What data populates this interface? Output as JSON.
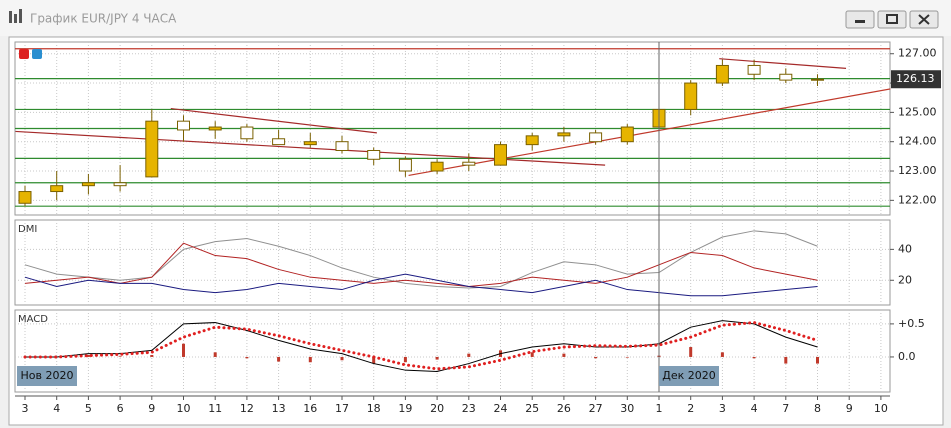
{
  "window": {
    "title": "График EUR/JPY  4 ЧАСА"
  },
  "x_axis": {
    "categories": [
      "3",
      "4",
      "5",
      "6",
      "9",
      "10",
      "11",
      "12",
      "13",
      "16",
      "17",
      "18",
      "19",
      "20",
      "23",
      "24",
      "25",
      "26",
      "27",
      "30",
      "1",
      "2",
      "3",
      "4",
      "7",
      "8",
      "9",
      "10"
    ],
    "period_labels": [
      {
        "index": 0,
        "label": "Нов 2020"
      },
      {
        "index": 20,
        "label": "Дек 2020"
      }
    ]
  },
  "chart_data": [
    {
      "type": "candlestick",
      "color": "#e6b400",
      "open": [
        121.9,
        122.3,
        122.5,
        122.6,
        122.8,
        124.7,
        124.4,
        124.5,
        124.1,
        123.9,
        124.0,
        123.7,
        123.4,
        123.0,
        123.3,
        123.2,
        123.9,
        124.2,
        124.3,
        124.0,
        124.5,
        125.1,
        126.0,
        126.6,
        126.3,
        126.1,
        null,
        null
      ],
      "high": [
        122.5,
        123.0,
        122.9,
        123.2,
        125.1,
        124.9,
        124.7,
        124.6,
        124.4,
        124.3,
        124.2,
        123.8,
        123.5,
        123.4,
        123.6,
        124.0,
        124.3,
        124.5,
        124.4,
        124.6,
        125.2,
        126.1,
        126.8,
        126.8,
        126.5,
        126.3,
        null,
        null
      ],
      "low": [
        121.8,
        122.0,
        122.2,
        122.3,
        122.8,
        124.0,
        124.1,
        124.0,
        123.9,
        123.8,
        123.6,
        123.2,
        122.8,
        122.9,
        123.0,
        123.2,
        123.7,
        124.0,
        123.9,
        123.9,
        124.3,
        124.9,
        125.9,
        126.1,
        126.0,
        125.9,
        null,
        null
      ],
      "close": [
        122.3,
        122.5,
        122.6,
        122.5,
        124.7,
        124.4,
        124.5,
        124.1,
        123.9,
        124.0,
        123.7,
        123.4,
        123.0,
        123.3,
        123.2,
        123.9,
        124.2,
        124.3,
        124.0,
        124.5,
        125.1,
        126.0,
        126.6,
        126.3,
        126.1,
        126.13,
        null,
        null
      ],
      "ylim": [
        121.5,
        127.4
      ],
      "yticks": [
        {
          "value": 127,
          "label": "127.00"
        },
        {
          "value": 126,
          "label": "126.00"
        },
        {
          "value": 125,
          "label": "125.00"
        },
        {
          "value": 124,
          "label": "124.00"
        },
        {
          "value": 123,
          "label": "123.00"
        },
        {
          "value": 122,
          "label": "122.00"
        }
      ],
      "levels": [
        {
          "value": 127.17,
          "color": "#c0392b"
        },
        {
          "value": 126.15,
          "color": "#2e8b2e"
        },
        {
          "value": 125.1,
          "color": "#2e8b2e"
        },
        {
          "value": 124.45,
          "color": "#2e8b2e"
        },
        {
          "value": 123.43,
          "color": "#2e8b2e"
        },
        {
          "value": 122.6,
          "color": "#2e8b2e"
        },
        {
          "value": 121.8,
          "color": "#2e8b2e"
        }
      ],
      "trendlines": [
        {
          "points": [
            [
              -0.3,
              124.35
            ],
            [
              18.3,
              123.2
            ]
          ],
          "color": "#a52a2a"
        },
        {
          "points": [
            [
              4.6,
              125.13
            ],
            [
              11.1,
              124.3
            ]
          ],
          "color": "#a52a2a"
        },
        {
          "points": [
            [
              12.1,
              122.85
            ],
            [
              27.3,
              125.8
            ]
          ],
          "color": "#c0392b"
        },
        {
          "points": [
            [
              21.9,
              126.83
            ],
            [
              25.9,
              126.5
            ]
          ],
          "color": "#a52a2a"
        }
      ],
      "last_price": 126.13
    },
    {
      "type": "line",
      "title": "DMI",
      "ylim": [
        4,
        59
      ],
      "yticks": [
        40,
        20
      ],
      "series": [
        {
          "color": "#909090",
          "values": [
            30,
            24,
            22,
            20,
            22,
            40,
            45,
            47,
            42,
            36,
            28,
            22,
            18,
            16,
            15,
            16,
            25,
            32,
            30,
            24,
            25,
            38,
            48,
            52,
            50,
            42,
            null,
            null
          ]
        },
        {
          "color": "#b22222",
          "values": [
            18,
            20,
            22,
            18,
            22,
            44,
            36,
            34,
            27,
            22,
            20,
            18,
            20,
            18,
            16,
            18,
            22,
            20,
            18,
            22,
            30,
            38,
            36,
            28,
            24,
            20,
            null,
            null
          ]
        },
        {
          "color": "#1a1a80",
          "values": [
            22,
            16,
            20,
            18,
            18,
            14,
            12,
            14,
            18,
            16,
            14,
            20,
            24,
            20,
            16,
            14,
            12,
            16,
            20,
            14,
            12,
            10,
            10,
            12,
            14,
            16,
            null,
            null
          ]
        }
      ]
    },
    {
      "type": "macd",
      "title": "MACD",
      "ylim": [
        -0.53,
        0.71
      ],
      "yticks": [
        {
          "value": 0.5,
          "label": "+0.5"
        },
        {
          "value": 0,
          "label": "0.0"
        }
      ],
      "series": [
        {
          "kind": "bar",
          "color": "#c0392b",
          "values": [
            0,
            0,
            0.03,
            0.01,
            0.03,
            0.2,
            0.07,
            -0.02,
            -0.07,
            -0.08,
            -0.05,
            -0.1,
            -0.08,
            -0.04,
            0.05,
            0.1,
            0.07,
            0.05,
            -0.02,
            -0.01,
            0.02,
            0.15,
            0.07,
            -0.02,
            -0.1,
            -0.1,
            null,
            null
          ]
        },
        {
          "kind": "line",
          "color": "#000000",
          "values": [
            0,
            0,
            0.05,
            0.05,
            0.1,
            0.5,
            0.52,
            0.4,
            0.25,
            0.12,
            0.05,
            -0.1,
            -0.2,
            -0.22,
            -0.1,
            0.05,
            0.15,
            0.2,
            0.15,
            0.15,
            0.2,
            0.45,
            0.55,
            0.5,
            0.3,
            0.15,
            null,
            null
          ]
        },
        {
          "kind": "dotted",
          "color": "#e02020",
          "values": [
            0,
            0,
            0.02,
            0.04,
            0.07,
            0.3,
            0.45,
            0.42,
            0.32,
            0.2,
            0.1,
            0,
            -0.12,
            -0.18,
            -0.15,
            -0.05,
            0.08,
            0.15,
            0.17,
            0.16,
            0.18,
            0.3,
            0.48,
            0.52,
            0.4,
            0.25,
            null,
            null
          ]
        }
      ]
    }
  ]
}
